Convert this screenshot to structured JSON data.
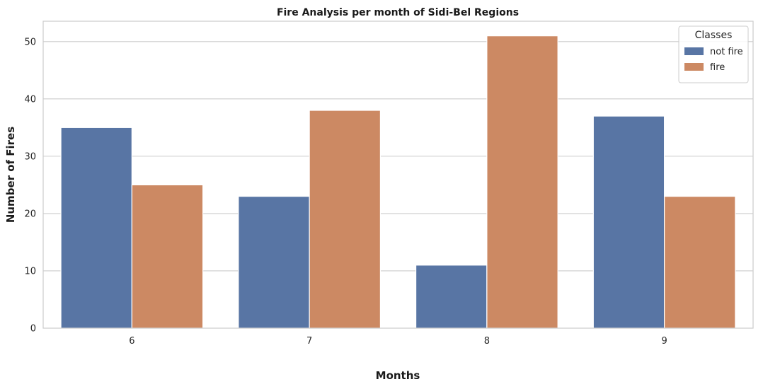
{
  "chart_data": {
    "type": "bar",
    "title": "Fire Analysis per month of Sidi-Bel Regions",
    "xlabel": "Months",
    "ylabel": "Number of Fires",
    "categories": [
      "6",
      "7",
      "8",
      "9"
    ],
    "series": [
      {
        "name": "not fire",
        "values": [
          35,
          23,
          11,
          37
        ],
        "color": "#5875a4"
      },
      {
        "name": "fire",
        "values": [
          25,
          38,
          51,
          23
        ],
        "color": "#cc8963"
      }
    ],
    "ylim": [
      0,
      53.55
    ],
    "yticks": [
      0,
      10,
      20,
      30,
      40,
      50
    ],
    "grid": "horizontal",
    "legend": {
      "title": "Classes",
      "position": "top-right"
    }
  }
}
